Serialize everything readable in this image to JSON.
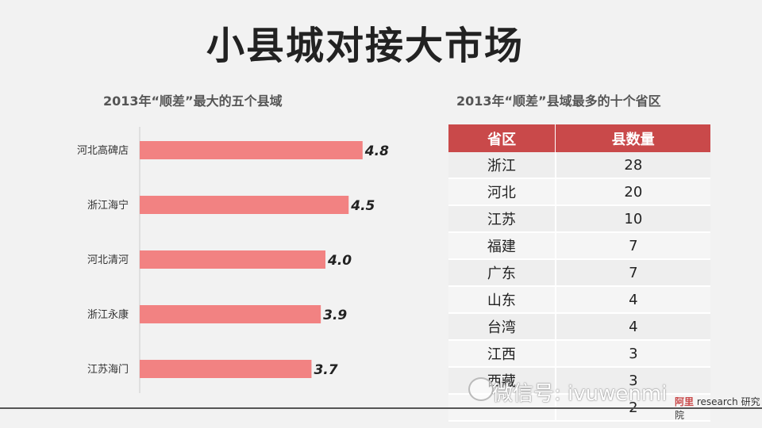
{
  "title": "小县城对接大市场",
  "left_subtitle": "2013年“顺差”最大的五个县域",
  "right_subtitle": "2013年“顺差”县域最多的十个省区",
  "chart_data": {
    "type": "bar",
    "orientation": "horizontal",
    "categories": [
      "河北高碑店",
      "浙江海宁",
      "河北清河",
      "浙江永康",
      "江苏海门"
    ],
    "values": [
      4.8,
      4.5,
      4.0,
      3.9,
      3.7
    ],
    "value_labels": [
      "4.8",
      "4.5",
      "4.0",
      "3.9",
      "3.7"
    ],
    "title": "2013年“顺差”最大的五个县域",
    "bar_color": "#f28282"
  },
  "table": {
    "headers": [
      "省区",
      "县数量"
    ],
    "rows": [
      [
        "浙江",
        "28"
      ],
      [
        "河北",
        "20"
      ],
      [
        "江苏",
        "10"
      ],
      [
        "福建",
        "7"
      ],
      [
        "广东",
        "7"
      ],
      [
        "山东",
        "4"
      ],
      [
        "台湾",
        "4"
      ],
      [
        "江西",
        "3"
      ],
      [
        "西藏",
        "3"
      ],
      [
        "",
        "2"
      ]
    ],
    "header_color": "#c9494a"
  },
  "watermark": "微信号: ivuwenmi",
  "logo": {
    "brand": "阿里",
    "text": "research 研究院"
  }
}
